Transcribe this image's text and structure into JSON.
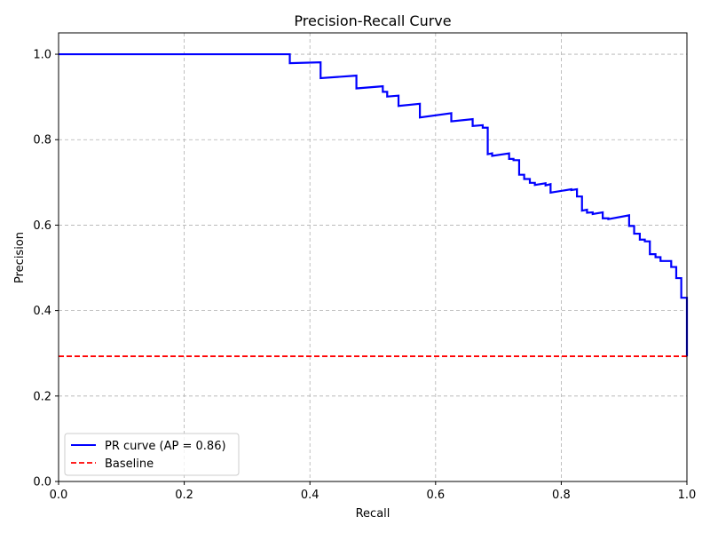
{
  "chart_data": {
    "type": "line",
    "title": "Precision-Recall Curve",
    "xlabel": "Recall",
    "ylabel": "Precision",
    "xlim": [
      0.0,
      1.0
    ],
    "ylim": [
      0.0,
      1.05
    ],
    "x_ticks": [
      "0.0",
      "0.2",
      "0.4",
      "0.6",
      "0.8",
      "1.0"
    ],
    "y_ticks": [
      "0.0",
      "0.2",
      "0.4",
      "0.6",
      "0.8",
      "1.0"
    ],
    "grid": true,
    "legend_position": "lower-left",
    "series": [
      {
        "name": "PR curve (AP = 0.86)",
        "color": "#0000ff",
        "style": "solid",
        "points": [
          [
            0.0,
            1.0
          ],
          [
            0.368,
            1.0
          ],
          [
            0.368,
            0.979
          ],
          [
            0.417,
            0.981
          ],
          [
            0.417,
            0.944
          ],
          [
            0.474,
            0.95
          ],
          [
            0.474,
            0.92
          ],
          [
            0.516,
            0.925
          ],
          [
            0.516,
            0.912
          ],
          [
            0.523,
            0.912
          ],
          [
            0.523,
            0.901
          ],
          [
            0.541,
            0.903
          ],
          [
            0.541,
            0.879
          ],
          [
            0.575,
            0.884
          ],
          [
            0.575,
            0.852
          ],
          [
            0.625,
            0.862
          ],
          [
            0.625,
            0.843
          ],
          [
            0.659,
            0.848
          ],
          [
            0.659,
            0.832
          ],
          [
            0.675,
            0.834
          ],
          [
            0.675,
            0.828
          ],
          [
            0.683,
            0.828
          ],
          [
            0.683,
            0.766
          ],
          [
            0.69,
            0.768
          ],
          [
            0.69,
            0.762
          ],
          [
            0.717,
            0.768
          ],
          [
            0.717,
            0.755
          ],
          [
            0.724,
            0.755
          ],
          [
            0.724,
            0.752
          ],
          [
            0.733,
            0.752
          ],
          [
            0.733,
            0.718
          ],
          [
            0.741,
            0.718
          ],
          [
            0.741,
            0.708
          ],
          [
            0.75,
            0.708
          ],
          [
            0.75,
            0.699
          ],
          [
            0.758,
            0.699
          ],
          [
            0.758,
            0.694
          ],
          [
            0.775,
            0.698
          ],
          [
            0.775,
            0.693
          ],
          [
            0.783,
            0.696
          ],
          [
            0.783,
            0.676
          ],
          [
            0.816,
            0.684
          ],
          [
            0.816,
            0.682
          ],
          [
            0.825,
            0.684
          ],
          [
            0.825,
            0.667
          ],
          [
            0.833,
            0.667
          ],
          [
            0.833,
            0.634
          ],
          [
            0.841,
            0.636
          ],
          [
            0.841,
            0.629
          ],
          [
            0.85,
            0.63
          ],
          [
            0.85,
            0.626
          ],
          [
            0.866,
            0.63
          ],
          [
            0.866,
            0.616
          ],
          [
            0.875,
            0.616
          ],
          [
            0.875,
            0.614
          ],
          [
            0.908,
            0.623
          ],
          [
            0.908,
            0.598
          ],
          [
            0.916,
            0.598
          ],
          [
            0.916,
            0.58
          ],
          [
            0.925,
            0.58
          ],
          [
            0.925,
            0.566
          ],
          [
            0.933,
            0.566
          ],
          [
            0.933,
            0.562
          ],
          [
            0.941,
            0.562
          ],
          [
            0.941,
            0.532
          ],
          [
            0.95,
            0.532
          ],
          [
            0.95,
            0.525
          ],
          [
            0.958,
            0.525
          ],
          [
            0.958,
            0.516
          ],
          [
            0.975,
            0.516
          ],
          [
            0.975,
            0.502
          ],
          [
            0.983,
            0.502
          ],
          [
            0.983,
            0.476
          ],
          [
            0.991,
            0.476
          ],
          [
            0.991,
            0.43
          ],
          [
            1.0,
            0.43
          ],
          [
            1.0,
            0.293
          ]
        ]
      },
      {
        "name": "Baseline",
        "color": "#ff0000",
        "style": "dashed",
        "points": [
          [
            0.0,
            0.293
          ],
          [
            1.0,
            0.293
          ]
        ]
      }
    ]
  }
}
